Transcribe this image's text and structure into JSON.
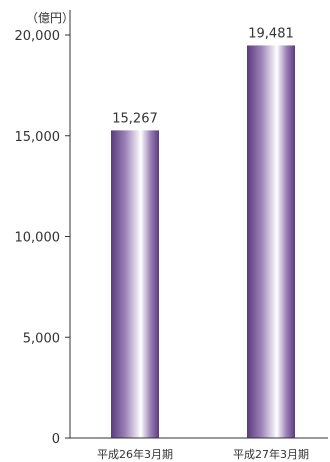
{
  "chart_data": {
    "type": "bar",
    "unit_label": "（億円）",
    "categories": [
      "平成26年3月期",
      "平成27年3月期"
    ],
    "values": [
      15267,
      19481
    ],
    "value_labels": [
      "15,267",
      "19,481"
    ],
    "ylim": [
      0,
      20000
    ],
    "yticks": [
      0,
      5000,
      10000,
      15000,
      20000
    ],
    "ytick_labels": [
      "0",
      "5,000",
      "10,000",
      "15,000",
      "20,000"
    ],
    "title": "",
    "xlabel": "",
    "ylabel": "",
    "grid": false,
    "colors": {
      "bar_dark": "#5a3b7c",
      "bar_mid": "#9c82b8",
      "bar_light": "#ffffff",
      "axis": "#333333",
      "text": "#333333"
    }
  }
}
